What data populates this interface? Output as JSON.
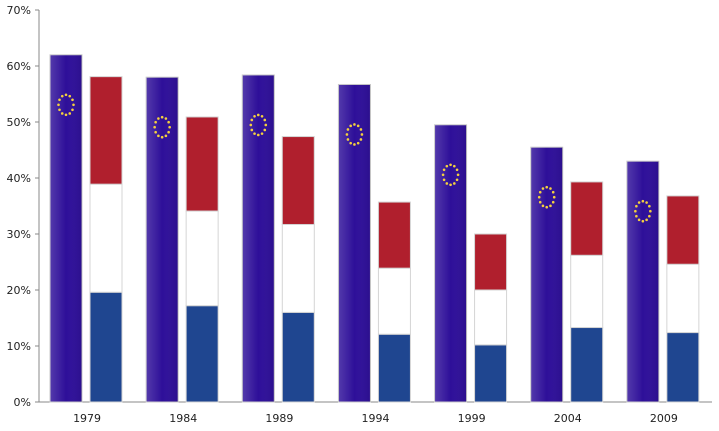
{
  "chart_data": {
    "type": "bar",
    "title": "",
    "xlabel": "",
    "ylabel": "",
    "ylim": [
      0,
      70
    ],
    "yticks": [
      "0%",
      "10%",
      "20%",
      "30%",
      "40%",
      "50%",
      "60%",
      "70%"
    ],
    "grid": false,
    "categories": [
      "1979",
      "1984",
      "1989",
      "1994",
      "1999",
      "2004",
      "2009"
    ],
    "series": [
      {
        "values": [
          62.0,
          58.0,
          58.4,
          56.7,
          49.5,
          45.5,
          43.0
        ],
        "color": "#2e0f99",
        "marker": "eu-star-circle-icon"
      },
      {
        "stacked": true,
        "segments": [
          {
            "values": [
              19.6,
              17.2,
              16.0,
              12.1,
              10.2,
              13.3,
              12.4
            ],
            "color": "#1f4690"
          },
          {
            "values": [
              19.3,
              16.9,
              15.7,
              11.8,
              9.8,
              12.9,
              12.2
            ],
            "color": "#ffffff"
          },
          {
            "values": [
              19.2,
              16.8,
              15.7,
              11.8,
              10.0,
              13.1,
              12.2
            ],
            "color": "#b01f2d"
          }
        ]
      }
    ]
  }
}
